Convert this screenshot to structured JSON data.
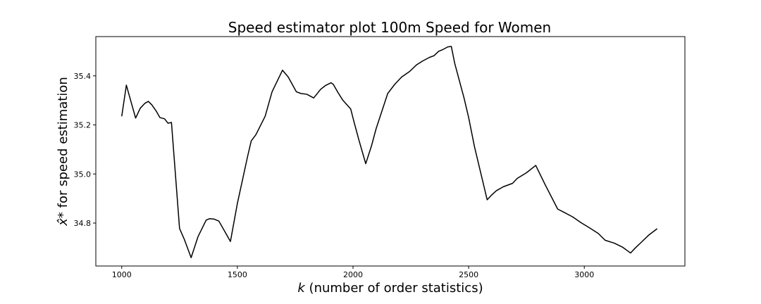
{
  "chart_data": {
    "type": "line",
    "title": "Speed estimator plot 100m Speed for Women",
    "xlabel_prefix": "k",
    "xlabel_rest": " (number of order statistics)",
    "ylabel_symbol": "x̂*",
    "ylabel_rest": " for speed estimation",
    "xlim": [
      888,
      3435
    ],
    "ylim": [
      34.625,
      35.56
    ],
    "xticks": [
      1000,
      1500,
      2000,
      2500,
      3000
    ],
    "yticks": [
      34.8,
      35.0,
      35.2,
      35.4
    ],
    "ytick_labels": [
      "34.8",
      "35.0",
      "35.2",
      "35.4"
    ],
    "grid": false,
    "series": [
      {
        "color": "#000000",
        "x": [
          1000,
          1020,
          1040,
          1060,
          1080,
          1100,
          1115,
          1130,
          1150,
          1165,
          1185,
          1200,
          1215,
          1250,
          1270,
          1300,
          1330,
          1365,
          1380,
          1400,
          1420,
          1470,
          1500,
          1545,
          1560,
          1580,
          1620,
          1650,
          1695,
          1720,
          1755,
          1775,
          1800,
          1830,
          1860,
          1880,
          1905,
          1915,
          1935,
          1955,
          1990,
          2005,
          2025,
          2055,
          2080,
          2100,
          2150,
          2180,
          2210,
          2245,
          2275,
          2300,
          2330,
          2350,
          2370,
          2390,
          2410,
          2425,
          2440,
          2460,
          2480,
          2500,
          2525,
          2580,
          2590,
          2600,
          2620,
          2650,
          2690,
          2710,
          2750,
          2790,
          2830,
          2885,
          2910,
          2950,
          2985,
          3020,
          3060,
          3090,
          3130,
          3165,
          3200,
          3220,
          3250,
          3280,
          3315
        ],
        "y": [
          35.235,
          35.362,
          35.295,
          35.228,
          35.268,
          35.288,
          35.296,
          35.282,
          35.255,
          35.23,
          35.225,
          35.207,
          35.21,
          34.778,
          34.735,
          34.659,
          34.745,
          34.812,
          34.818,
          34.816,
          34.808,
          34.725,
          34.88,
          35.075,
          35.135,
          35.16,
          35.235,
          35.335,
          35.423,
          35.395,
          35.335,
          35.328,
          35.325,
          35.31,
          35.345,
          35.36,
          35.372,
          35.365,
          35.332,
          35.302,
          35.265,
          35.21,
          35.14,
          35.042,
          35.115,
          35.185,
          35.328,
          35.365,
          35.395,
          35.418,
          35.445,
          35.46,
          35.475,
          35.482,
          35.5,
          35.508,
          35.518,
          35.52,
          35.45,
          35.38,
          35.31,
          35.23,
          35.112,
          34.895,
          34.905,
          34.915,
          34.932,
          34.948,
          34.962,
          34.982,
          35.005,
          35.035,
          34.958,
          34.857,
          34.845,
          34.825,
          34.802,
          34.782,
          34.758,
          34.73,
          34.718,
          34.702,
          34.678,
          34.698,
          34.725,
          34.752,
          34.777
        ]
      }
    ]
  }
}
